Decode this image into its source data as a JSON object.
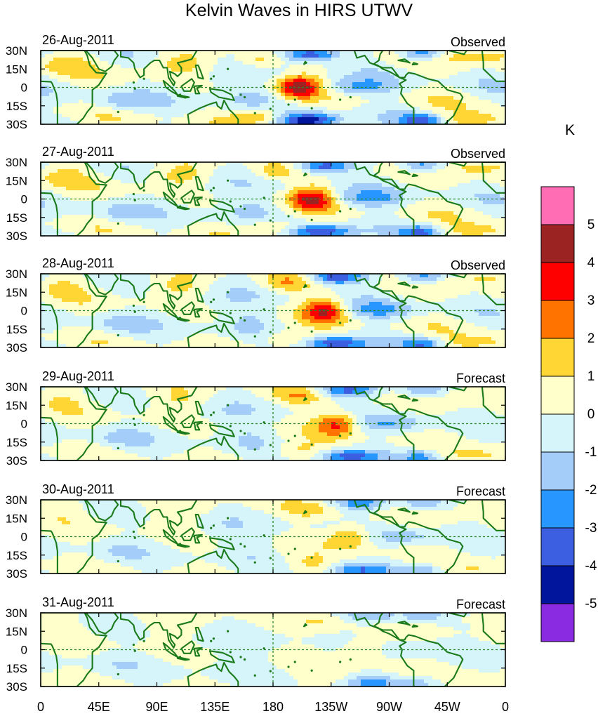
{
  "figure": {
    "title": "Kelvin Waves in HIRS UTWV"
  },
  "colors": {
    "land_outline": "#1a7a1a",
    "reference_line": "#2a8a2a",
    "frame": "#000000"
  },
  "axes": {
    "lat_labels": [
      "30N",
      "15N",
      "0",
      "15S",
      "30S"
    ],
    "lon_labels": [
      "0",
      "45E",
      "90E",
      "135E",
      "180",
      "135W",
      "90W",
      "45W",
      "0"
    ],
    "lon_range_deg_east": [
      0,
      360
    ],
    "lat_range_deg": [
      -30,
      30
    ]
  },
  "panels": [
    {
      "date": "26-Aug-2011",
      "status": "Observed",
      "peak_center_lon": 200,
      "peak_value": 4.3,
      "pattern_strength": 1.0
    },
    {
      "date": "27-Aug-2011",
      "status": "Observed",
      "peak_center_lon": 210,
      "peak_value": 3.8,
      "pattern_strength": 0.9
    },
    {
      "date": "28-Aug-2011",
      "status": "Observed",
      "peak_center_lon": 220,
      "peak_value": 3.6,
      "pattern_strength": 0.85
    },
    {
      "date": "29-Aug-2011",
      "status": "Forecast",
      "peak_center_lon": 230,
      "peak_value": 3.2,
      "pattern_strength": 0.7
    },
    {
      "date": "30-Aug-2011",
      "status": "Forecast",
      "peak_center_lon": 240,
      "peak_value": 2.4,
      "pattern_strength": 0.55
    },
    {
      "date": "31-Aug-2011",
      "status": "Forecast",
      "peak_center_lon": 250,
      "peak_value": 1.6,
      "pattern_strength": 0.4
    }
  ],
  "colorbar": {
    "unit": "K",
    "tick_labels": [
      "5",
      "4",
      "3",
      "2",
      "1",
      "0",
      "-1",
      "-2",
      "-3",
      "-4",
      "-5"
    ],
    "bins": [
      {
        "range": "> 5",
        "color": "#ff6eb4"
      },
      {
        "range": "4 to 5",
        "color": "#9b2423"
      },
      {
        "range": "3 to 4",
        "color": "#ff0000"
      },
      {
        "range": "2 to 3",
        "color": "#ff7300"
      },
      {
        "range": "1 to 2",
        "color": "#ffd633"
      },
      {
        "range": "0 to 1",
        "color": "#ffffcc"
      },
      {
        "range": "-1 to 0",
        "color": "#d6f5fa"
      },
      {
        "range": "-2 to -1",
        "color": "#a4cdfa"
      },
      {
        "range": "-3 to -2",
        "color": "#2896ff"
      },
      {
        "range": "-4 to -3",
        "color": "#3c5ee0"
      },
      {
        "range": "-5 to -4",
        "color": "#00149c"
      },
      {
        "range": "< -5",
        "color": "#8a2be2"
      }
    ]
  }
}
